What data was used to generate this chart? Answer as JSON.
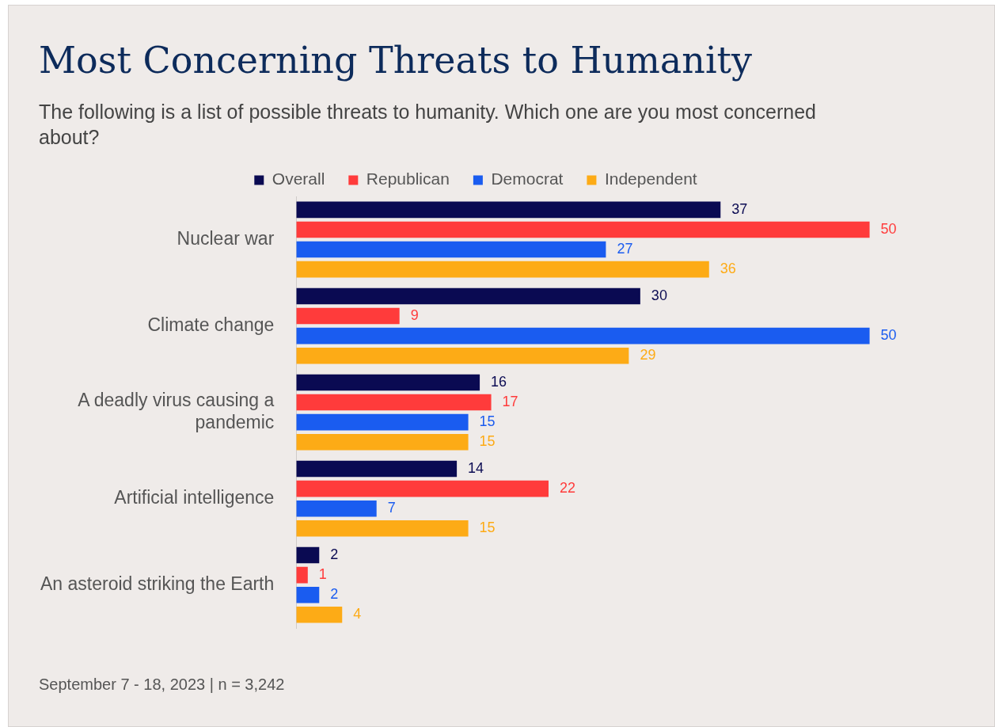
{
  "chart_data": {
    "type": "bar",
    "orientation": "horizontal",
    "title": "Most Concerning Threats to Humanity",
    "subtitle": "The following is a list of possible threats to humanity. Which one are you most concerned about?",
    "categories": [
      "Nuclear war",
      "Climate change",
      "A deadly virus causing a pandemic",
      "Artificial intelligence",
      "An asteroid striking the Earth"
    ],
    "series": [
      {
        "name": "Overall",
        "color": "#0a0a52",
        "values": [
          37,
          30,
          16,
          14,
          2
        ]
      },
      {
        "name": "Republican",
        "color": "#ff3b3b",
        "values": [
          50,
          9,
          17,
          22,
          1
        ]
      },
      {
        "name": "Democrat",
        "color": "#1a5cf0",
        "values": [
          27,
          50,
          15,
          7,
          2
        ]
      },
      {
        "name": "Independent",
        "color": "#fdab16",
        "values": [
          36,
          29,
          15,
          15,
          4
        ]
      }
    ],
    "data_labels": true,
    "legend": "top",
    "annotations": [
      "September 7 - 18, 2023 | n = 3,242"
    ]
  }
}
